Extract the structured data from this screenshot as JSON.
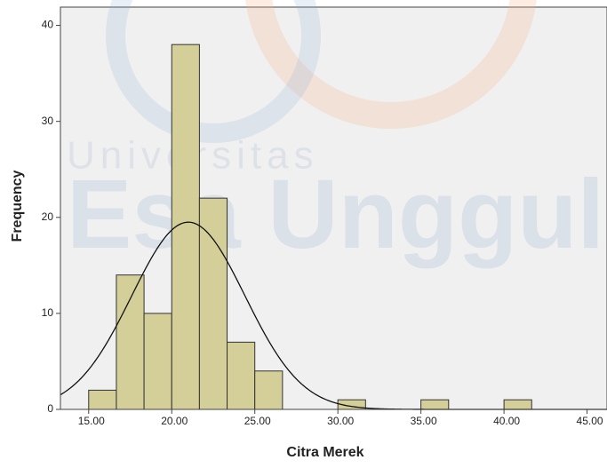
{
  "chart_data": {
    "type": "histogram",
    "x_label": "Citra Merek",
    "y_label": "Frequency",
    "watermark": [
      "Universitas",
      "Esa Unggul"
    ],
    "bins": [
      15,
      16.6667,
      18.3333,
      20,
      21.6667,
      23.3333,
      25,
      26.6667,
      28.3333,
      30,
      31.6667,
      33.3333,
      35,
      36.6667,
      38.3333,
      40,
      41.6667
    ],
    "counts": [
      2,
      14,
      10,
      38,
      22,
      7,
      4,
      0,
      0,
      1,
      0,
      0,
      1,
      0,
      0,
      1
    ],
    "color": "#d4cf98",
    "normal_curve": {
      "mean": 21.0,
      "std": 3.41,
      "color": "#111111"
    },
    "xlim": [
      13.3,
      46.2
    ],
    "ylim": [
      0,
      41.9
    ],
    "xticks": [
      {
        "value": 15,
        "label": "15.00"
      },
      {
        "value": 20,
        "label": "20.00"
      },
      {
        "value": 25,
        "label": "25.00"
      },
      {
        "value": 30,
        "label": "30.00"
      },
      {
        "value": 35,
        "label": "35.00"
      },
      {
        "value": 40,
        "label": "40.00"
      },
      {
        "value": 45,
        "label": "45.00"
      }
    ],
    "yticks": [
      0,
      10,
      20,
      30,
      40
    ]
  }
}
